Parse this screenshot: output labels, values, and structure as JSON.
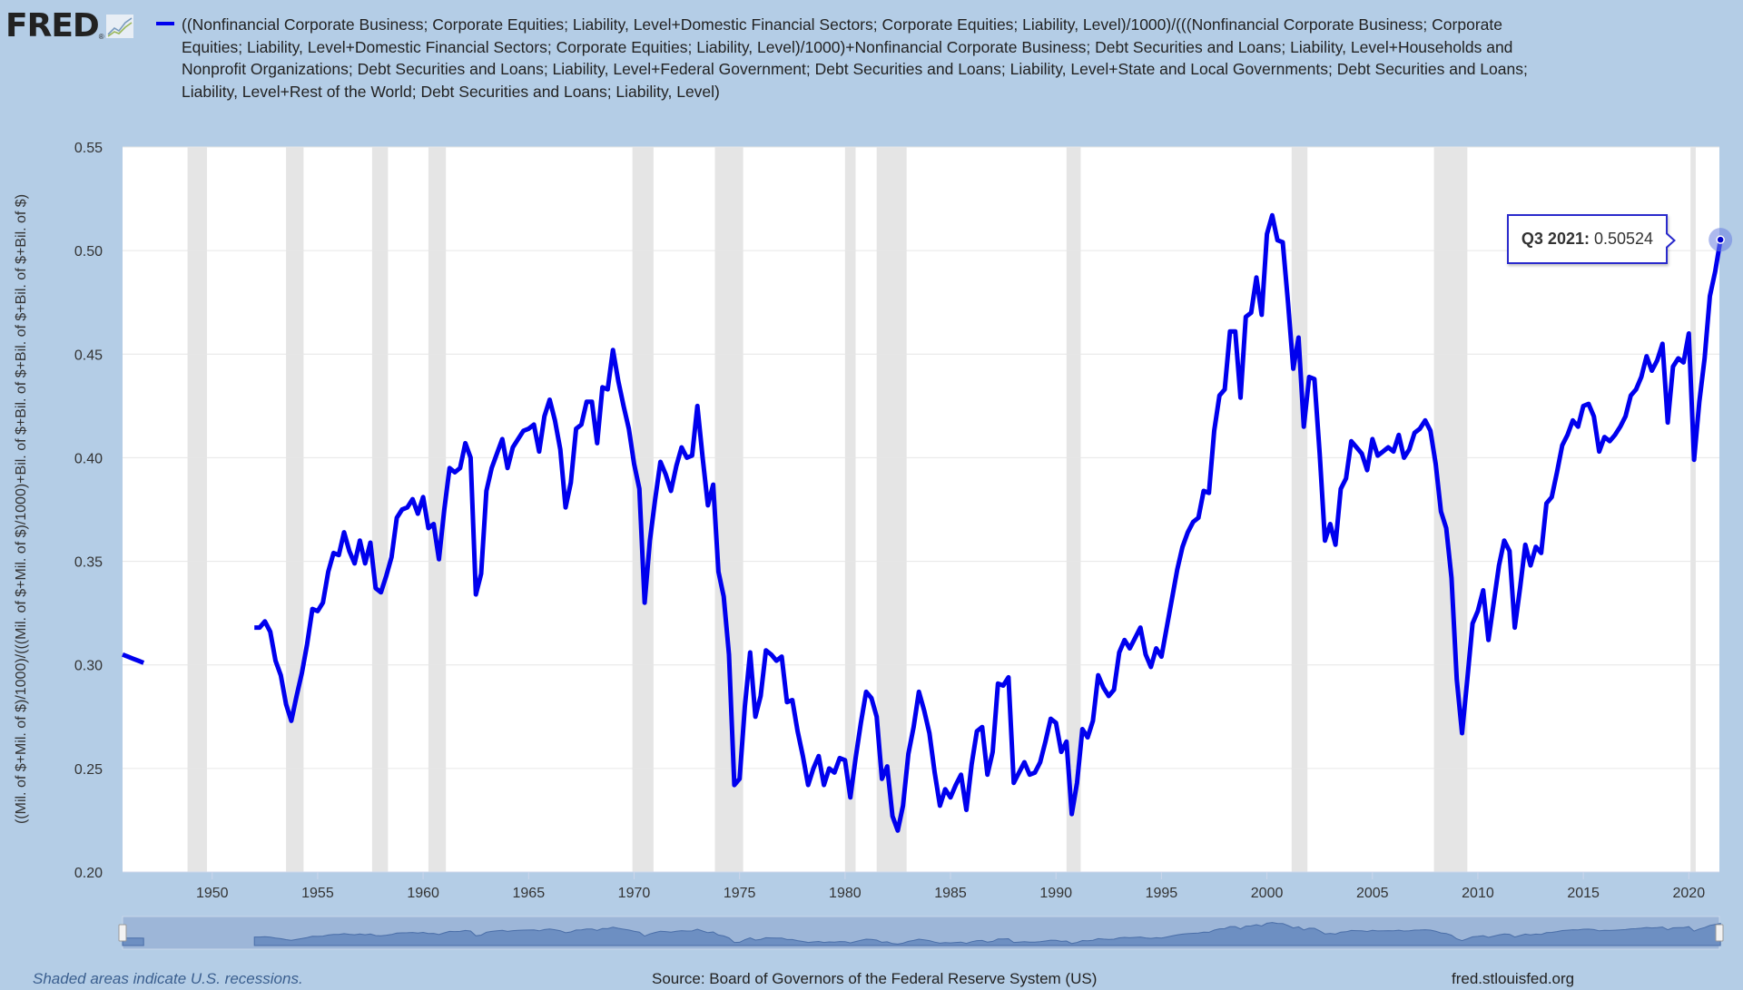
{
  "header": {
    "logo_text": "FRED",
    "title_lines": [
      "((Nonfinancial Corporate Business; Corporate Equities; Liability, Level+Domestic Financial Sectors; Corporate Equities; Liability, Level)/1000)/(((Nonfinancial Corporate Business; Corporate",
      "Equities; Liability, Level+Domestic Financial Sectors; Corporate Equities; Liability, Level)/1000)+Nonfinancial Corporate Business; Debt Securities and Loans; Liability, Level+Households and",
      "Nonprofit Organizations; Debt Securities and Loans; Liability, Level+Federal Government; Debt Securities and Loans; Liability, Level+State and Local Governments; Debt Securities and Loans;",
      "Liability, Level+Rest of the World; Debt Securities and Loans; Liability, Level)"
    ],
    "series_color": "#0000ee"
  },
  "tooltip": {
    "label": "Q3 2021:",
    "value": "0.50524"
  },
  "footer": {
    "recession_note": "Shaded areas indicate U.S. recessions.",
    "source": "Source: Board of Governors of the Federal Reserve System (US)",
    "site": "fred.stlouisfed.org"
  },
  "chart_data": {
    "type": "line",
    "frequency": "quarterly",
    "ylabel": "((Mil. of $+Mil. of $)/1000)/(((Mil. of $+Mil. of $)/1000)+Bil. of $+Bil. of $+Bil. of $+Bil. of $+Bil. of $)",
    "xlim": [
      1945.75,
      2021.5
    ],
    "ylim": [
      0.2,
      0.55
    ],
    "yticks": [
      "0.20",
      "0.25",
      "0.30",
      "0.35",
      "0.40",
      "0.45",
      "0.50",
      "0.55"
    ],
    "xticks": [
      "1950",
      "1955",
      "1960",
      "1965",
      "1970",
      "1975",
      "1980",
      "1985",
      "1990",
      "1995",
      "2000",
      "2005",
      "2010",
      "2015",
      "2020"
    ],
    "grid": "horizontal",
    "recessions": [
      [
        1948.83,
        1949.75
      ],
      [
        1953.5,
        1954.33
      ],
      [
        1957.58,
        1958.33
      ],
      [
        1960.25,
        1961.08
      ],
      [
        1969.92,
        1970.92
      ],
      [
        1973.83,
        1975.17
      ],
      [
        1980.0,
        1980.5
      ],
      [
        1981.5,
        1982.92
      ],
      [
        1990.5,
        1991.17
      ],
      [
        2001.17,
        2001.92
      ],
      [
        2007.92,
        2009.5
      ],
      [
        2020.08,
        2020.33
      ]
    ],
    "segments": [
      {
        "start": "1945 Q4",
        "values": [
          0.305,
          0.304,
          0.303,
          0.302,
          0.301
        ]
      },
      {
        "start": "1952 Q1",
        "values": [
          0.318,
          0.318,
          0.321,
          0.316,
          0.302,
          0.295,
          0.281,
          0.273,
          0.285,
          0.296,
          0.31,
          0.327,
          0.326,
          0.33,
          0.345,
          0.354,
          0.353,
          0.364,
          0.355,
          0.349,
          0.36,
          0.349,
          0.359,
          0.337,
          0.335,
          0.343,
          0.352,
          0.371,
          0.375,
          0.376,
          0.38,
          0.373,
          0.381,
          0.366,
          0.368,
          0.351,
          0.375,
          0.395,
          0.393,
          0.395,
          0.407,
          0.4,
          0.334,
          0.344,
          0.384,
          0.395,
          0.402,
          0.409,
          0.395,
          0.405,
          0.409,
          0.413,
          0.414,
          0.416,
          0.403,
          0.42,
          0.428,
          0.418,
          0.404,
          0.376,
          0.388,
          0.414,
          0.416,
          0.427,
          0.427,
          0.407,
          0.434,
          0.433,
          0.452,
          0.437,
          0.425,
          0.414,
          0.397,
          0.385,
          0.33,
          0.36,
          0.38,
          0.398,
          0.392,
          0.384,
          0.396,
          0.405,
          0.4,
          0.401,
          0.425,
          0.4,
          0.377,
          0.387,
          0.345,
          0.333,
          0.305,
          0.242,
          0.245,
          0.28,
          0.306,
          0.275,
          0.285,
          0.307,
          0.305,
          0.302,
          0.304,
          0.282,
          0.283,
          0.268,
          0.256,
          0.242,
          0.25,
          0.256,
          0.242,
          0.25,
          0.248,
          0.255,
          0.254,
          0.236,
          0.255,
          0.272,
          0.287,
          0.284,
          0.275,
          0.245,
          0.251,
          0.227,
          0.22,
          0.232,
          0.257,
          0.27,
          0.287,
          0.278,
          0.267,
          0.248,
          0.232,
          0.24,
          0.236,
          0.242,
          0.247,
          0.23,
          0.252,
          0.268,
          0.27,
          0.247,
          0.258,
          0.291,
          0.29,
          0.294,
          0.243,
          0.248,
          0.253,
          0.247,
          0.248,
          0.253,
          0.263,
          0.274,
          0.272,
          0.258,
          0.263,
          0.228,
          0.243,
          0.269,
          0.265,
          0.273,
          0.295,
          0.289,
          0.285,
          0.288,
          0.306,
          0.312,
          0.308,
          0.313,
          0.318,
          0.305,
          0.299,
          0.308,
          0.304,
          0.318,
          0.332,
          0.346,
          0.357,
          0.364,
          0.369,
          0.371,
          0.384,
          0.383,
          0.413,
          0.43,
          0.433,
          0.461,
          0.461,
          0.429,
          0.468,
          0.47,
          0.487,
          0.469,
          0.508,
          0.517,
          0.505,
          0.504,
          0.475,
          0.443,
          0.458,
          0.415,
          0.439,
          0.438,
          0.402,
          0.36,
          0.368,
          0.358,
          0.385,
          0.39,
          0.408,
          0.405,
          0.402,
          0.394,
          0.409,
          0.401,
          0.403,
          0.405,
          0.403,
          0.411,
          0.4,
          0.404,
          0.412,
          0.414,
          0.418,
          0.413,
          0.397,
          0.374,
          0.366,
          0.342,
          0.293,
          0.267,
          0.293,
          0.32,
          0.326,
          0.336,
          0.312,
          0.33,
          0.348,
          0.36,
          0.355,
          0.318,
          0.337,
          0.358,
          0.348,
          0.357,
          0.354,
          0.378,
          0.381,
          0.393,
          0.406,
          0.411,
          0.418,
          0.415,
          0.425,
          0.426,
          0.42,
          0.403,
          0.41,
          0.408,
          0.411,
          0.415,
          0.42,
          0.43,
          0.433,
          0.439,
          0.449,
          0.442,
          0.447,
          0.455,
          0.417,
          0.444,
          0.448,
          0.446,
          0.46,
          0.399,
          0.427,
          0.448,
          0.478,
          0.49,
          0.50524
        ]
      }
    ],
    "highlight": {
      "x": "2021 Q3",
      "y": 0.50524
    }
  }
}
